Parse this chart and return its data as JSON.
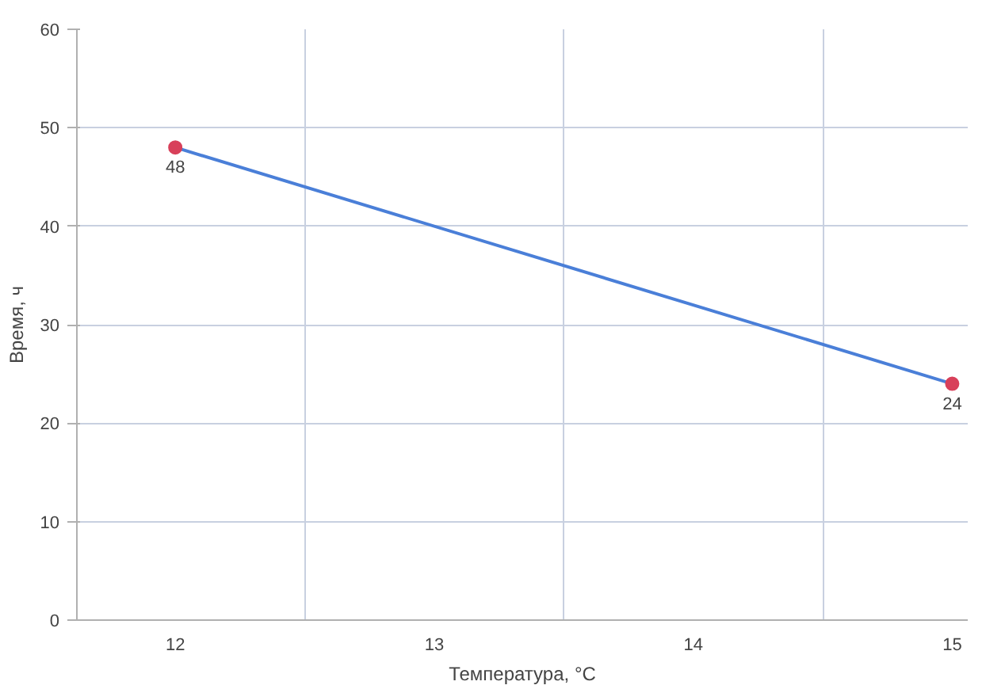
{
  "chart_data": {
    "type": "line",
    "xlabel": "Температура, °C",
    "ylabel": "Время, ч",
    "x": [
      12,
      15
    ],
    "series": [
      {
        "color": "#4a7fd8",
        "values": [
          48,
          24
        ]
      }
    ],
    "marker": "circle",
    "data_labels": true,
    "xlim": [
      11.62,
      15.06
    ],
    "xticks": [
      12,
      {
        "value": 12.5,
        "label": null
      },
      13,
      {
        "value": 13.5,
        "label": null
      },
      14,
      {
        "value": 14.5,
        "label": null
      },
      15
    ],
    "ylim": [
      0,
      60
    ],
    "yticks": [
      0,
      10,
      20,
      30,
      40,
      50,
      60
    ],
    "grid": true
  }
}
